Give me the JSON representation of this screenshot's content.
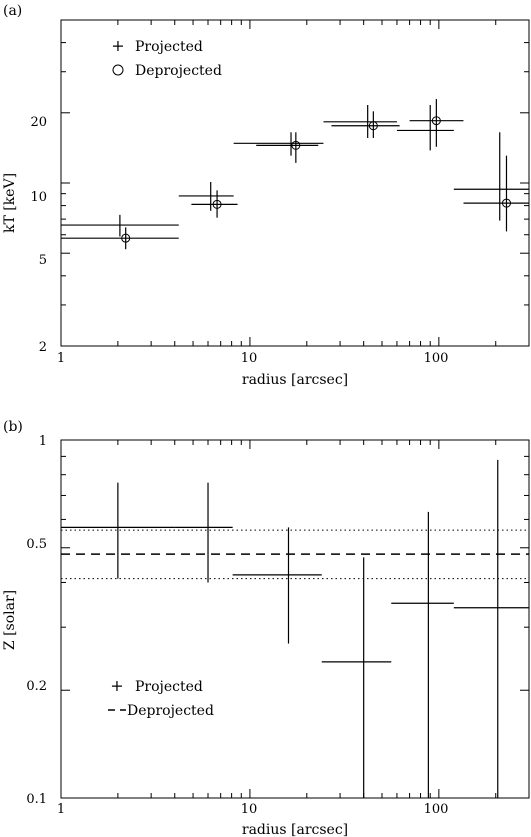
{
  "chart_data": [
    {
      "type": "scatter",
      "panel_label": "(a)",
      "xlabel": "radius [arcsec]",
      "ylabel": "kT [keV]",
      "xscale": "log",
      "yscale": "log",
      "xlim": [
        1,
        300
      ],
      "ylim": [
        2,
        50
      ],
      "x_ticks": [
        "1",
        "10",
        "100"
      ],
      "y_ticks": [
        "2",
        "5",
        "10",
        "20"
      ],
      "legend": {
        "placement": "top-left",
        "entries": [
          "Projected",
          "Deprojected"
        ]
      },
      "series": [
        {
          "name": "Projected",
          "marker": "none",
          "points": [
            {
              "x": 2.05,
              "xlo": 1.0,
              "xhi": 4.2,
              "y": 6.6,
              "ylo": 5.9,
              "yhi": 7.3
            },
            {
              "x": 6.2,
              "xlo": 4.2,
              "xhi": 8.2,
              "y": 8.8,
              "ylo": 7.6,
              "yhi": 10.1
            },
            {
              "x": 16.5,
              "xlo": 8.2,
              "xhi": 24.5,
              "y": 14.8,
              "ylo": 13.1,
              "yhi": 16.5
            },
            {
              "x": 42.0,
              "xlo": 24.5,
              "xhi": 60.0,
              "y": 18.3,
              "ylo": 15.6,
              "yhi": 21.6
            },
            {
              "x": 90.0,
              "xlo": 60.0,
              "xhi": 120.0,
              "y": 16.8,
              "ylo": 13.8,
              "yhi": 21.6
            },
            {
              "x": 210.0,
              "xlo": 120.0,
              "xhi": 300.0,
              "y": 9.4,
              "ylo": 6.9,
              "yhi": 16.5
            }
          ]
        },
        {
          "name": "Deprojected",
          "marker": "circle",
          "points": [
            {
              "x": 2.2,
              "xlo": 1.0,
              "xhi": 4.2,
              "y": 5.8,
              "ylo": 5.2,
              "yhi": 6.45
            },
            {
              "x": 6.7,
              "xlo": 4.9,
              "xhi": 8.6,
              "y": 8.1,
              "ylo": 7.1,
              "yhi": 9.3
            },
            {
              "x": 17.5,
              "xlo": 10.8,
              "xhi": 23.0,
              "y": 14.5,
              "ylo": 12.2,
              "yhi": 16.5
            },
            {
              "x": 45.0,
              "xlo": 27.0,
              "xhi": 62.0,
              "y": 17.6,
              "ylo": 15.6,
              "yhi": 20.3
            },
            {
              "x": 97.0,
              "xlo": 70.0,
              "xhi": 135.0,
              "y": 18.5,
              "ylo": 14.3,
              "yhi": 22.9
            },
            {
              "x": 228.0,
              "xlo": 135.0,
              "xhi": 300.0,
              "y": 8.2,
              "ylo": 6.2,
              "yhi": 13.1
            }
          ]
        }
      ]
    },
    {
      "type": "scatter",
      "panel_label": "(b)",
      "xlabel": "radius [arcsec]",
      "ylabel": "Z [solar]",
      "xscale": "log",
      "yscale": "log",
      "xlim": [
        1,
        300
      ],
      "ylim": [
        0.1,
        1
      ],
      "x_ticks": [
        "1",
        "10",
        "100"
      ],
      "y_ticks": [
        "0.1",
        "0.2",
        "0.5",
        "1"
      ],
      "legend": {
        "placement": "bottom-left",
        "entries": [
          "Projected",
          "Deprojected"
        ]
      },
      "series": [
        {
          "name": "Projected",
          "marker": "none",
          "points": [
            {
              "x": 2.0,
              "xlo": 1.0,
              "xhi": 4.0,
              "y": 0.57,
              "ylo": 0.41,
              "yhi": 0.76
            },
            {
              "x": 6.0,
              "xlo": 4.0,
              "xhi": 8.1,
              "y": 0.57,
              "ylo": 0.4,
              "yhi": 0.76
            },
            {
              "x": 16.0,
              "xlo": 8.1,
              "xhi": 24.0,
              "y": 0.42,
              "ylo": 0.27,
              "yhi": 0.57
            },
            {
              "x": 40.0,
              "xlo": 24.0,
              "xhi": 56.0,
              "y": 0.24,
              "ylo": 0.1,
              "yhi": 0.47
            },
            {
              "x": 88.0,
              "xlo": 56.0,
              "xhi": 120.0,
              "y": 0.35,
              "ylo": 0.1,
              "yhi": 0.63
            },
            {
              "x": 205.0,
              "xlo": 120.0,
              "xhi": 300.0,
              "y": 0.34,
              "ylo": 0.1,
              "yhi": 0.88
            }
          ]
        },
        {
          "name": "Deprojected",
          "style": "dashed",
          "value": 0.48,
          "bounds": [
            0.41,
            0.56
          ]
        }
      ]
    }
  ]
}
